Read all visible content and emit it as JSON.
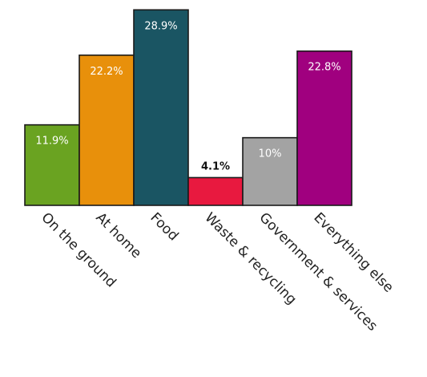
{
  "chart_data": {
    "type": "bar",
    "categories": [
      "On the ground",
      "At home",
      "Food",
      "Waste & recycling",
      "Government & services",
      "Everything else"
    ],
    "values": [
      11.9,
      22.2,
      28.9,
      4.1,
      10,
      22.8
    ],
    "value_labels": [
      "11.9%",
      "22.2%",
      "28.9%",
      "4.1%",
      "10%",
      "22.8%"
    ],
    "colors": [
      "#6aa321",
      "#e8900b",
      "#1a5563",
      "#e8193f",
      "#a3a3a3",
      "#a0007f"
    ],
    "label_colors": [
      "#ffffff",
      "#ffffff",
      "#ffffff",
      "#111111",
      "#ffffff",
      "#ffffff"
    ],
    "ylim": [
      0,
      30
    ],
    "grid": false,
    "legend": "none"
  }
}
